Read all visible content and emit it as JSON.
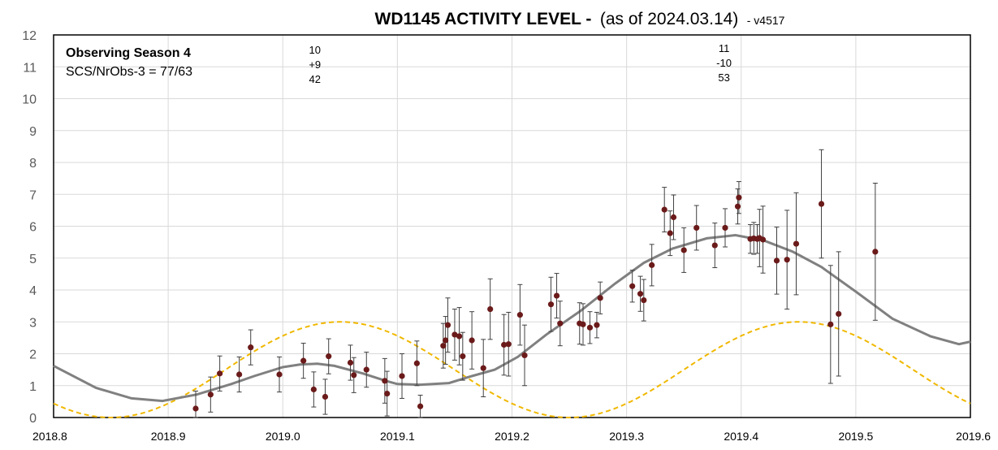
{
  "chart_data": {
    "type": "scatter",
    "title_bold": "WD1145 ACTIVITY LEVEL -",
    "title_normal": "(as of 2024.03.14)",
    "title_suffix": "- v4517",
    "xlim": [
      2018.8,
      2019.6
    ],
    "ylim": [
      0,
      12
    ],
    "x_ticks": [
      "2018.8",
      "2018.9",
      "2019.0",
      "2019.1",
      "2019.2",
      "2019.3",
      "2019.4",
      "2019.5",
      "2019.6"
    ],
    "y_ticks": [
      "0",
      "1",
      "2",
      "3",
      "4",
      "5",
      "6",
      "7",
      "8",
      "9",
      "10",
      "11",
      "12"
    ],
    "grid": true,
    "annotations": {
      "season": "Observing Season 4",
      "ratio": "SCS/NrObs-3 = 77/63",
      "top_left": {
        "x": 2019.028,
        "lines": [
          "10",
          "+9",
          "42"
        ]
      },
      "top_right": {
        "x": 2019.385,
        "lines": [
          "11",
          "-10",
          "53"
        ]
      }
    },
    "colors": {
      "points": "#6b1a1a",
      "smooth": "#808080",
      "model": "#f0b800",
      "errorbar": "#404040"
    },
    "points": [
      [
        2018.924,
        0.28,
        0.55
      ],
      [
        2018.937,
        0.72,
        0.55
      ],
      [
        2018.945,
        1.38,
        0.55
      ],
      [
        2018.962,
        1.35,
        0.55
      ],
      [
        2018.972,
        2.2,
        0.55
      ],
      [
        2018.997,
        1.35,
        0.55
      ],
      [
        2019.018,
        1.78,
        0.55
      ],
      [
        2019.027,
        0.88,
        0.55
      ],
      [
        2019.037,
        0.65,
        0.55
      ],
      [
        2019.04,
        1.92,
        0.55
      ],
      [
        2019.059,
        1.72,
        0.55
      ],
      [
        2019.062,
        1.33,
        0.55
      ],
      [
        2019.073,
        1.5,
        0.55
      ],
      [
        2019.089,
        1.15,
        0.7
      ],
      [
        2019.091,
        0.75,
        0.7
      ],
      [
        2019.104,
        1.3,
        0.7
      ],
      [
        2019.117,
        1.7,
        0.7
      ],
      [
        2019.12,
        0.35,
        0.35
      ],
      [
        2019.14,
        2.25,
        0.7
      ],
      [
        2019.142,
        2.42,
        0.75
      ],
      [
        2019.144,
        2.9,
        0.85
      ],
      [
        2019.15,
        2.6,
        0.8
      ],
      [
        2019.154,
        2.55,
        0.9
      ],
      [
        2019.157,
        1.92,
        0.75
      ],
      [
        2019.165,
        2.42,
        0.9
      ],
      [
        2019.175,
        1.55,
        0.9
      ],
      [
        2019.181,
        3.4,
        0.95
      ],
      [
        2019.193,
        2.28,
        0.95
      ],
      [
        2019.197,
        2.3,
        1.0
      ],
      [
        2019.207,
        3.22,
        0.95
      ],
      [
        2019.211,
        1.95,
        0.95
      ],
      [
        2019.234,
        3.55,
        0.85
      ],
      [
        2019.239,
        3.82,
        0.7
      ],
      [
        2019.242,
        2.95,
        0.7
      ],
      [
        2019.259,
        2.95,
        0.65
      ],
      [
        2019.262,
        2.92,
        0.65
      ],
      [
        2019.268,
        2.82,
        0.5
      ],
      [
        2019.274,
        2.9,
        0.4
      ],
      [
        2019.277,
        3.75,
        0.5
      ],
      [
        2019.305,
        4.12,
        0.5
      ],
      [
        2019.312,
        3.88,
        0.55
      ],
      [
        2019.315,
        3.68,
        0.65
      ],
      [
        2019.322,
        4.78,
        0.65
      ],
      [
        2019.333,
        6.52,
        0.7
      ],
      [
        2019.338,
        5.78,
        0.7
      ],
      [
        2019.341,
        6.28,
        0.7
      ],
      [
        2019.35,
        5.25,
        0.7
      ],
      [
        2019.361,
        5.95,
        0.7
      ],
      [
        2019.377,
        5.4,
        0.7
      ],
      [
        2019.386,
        5.95,
        0.6
      ],
      [
        2019.397,
        6.62,
        0.55
      ],
      [
        2019.398,
        6.9,
        0.5
      ],
      [
        2019.408,
        5.6,
        0.45
      ],
      [
        2019.411,
        5.62,
        0.5
      ],
      [
        2019.414,
        5.6,
        0.45
      ],
      [
        2019.416,
        5.63,
        0.9
      ],
      [
        2019.419,
        5.58,
        1.05
      ],
      [
        2019.431,
        4.92,
        1.05
      ],
      [
        2019.44,
        4.95,
        1.55
      ],
      [
        2019.448,
        5.45,
        1.6
      ],
      [
        2019.47,
        6.7,
        1.7
      ],
      [
        2019.478,
        2.92,
        1.85
      ],
      [
        2019.485,
        3.25,
        1.95
      ],
      [
        2019.517,
        5.2,
        2.15
      ]
    ],
    "smooth_curve": [
      [
        2018.8,
        1.62
      ],
      [
        2018.837,
        0.93
      ],
      [
        2018.868,
        0.6
      ],
      [
        2018.895,
        0.52
      ],
      [
        2018.925,
        0.72
      ],
      [
        2018.955,
        1.05
      ],
      [
        2018.975,
        1.3
      ],
      [
        2019.0,
        1.58
      ],
      [
        2019.015,
        1.66
      ],
      [
        2019.03,
        1.69
      ],
      [
        2019.045,
        1.62
      ],
      [
        2019.07,
        1.38
      ],
      [
        2019.09,
        1.15
      ],
      [
        2019.1,
        1.05
      ],
      [
        2019.12,
        1.03
      ],
      [
        2019.145,
        1.08
      ],
      [
        2019.165,
        1.3
      ],
      [
        2019.185,
        1.5
      ],
      [
        2019.205,
        1.9
      ],
      [
        2019.23,
        2.6
      ],
      [
        2019.26,
        3.35
      ],
      [
        2019.29,
        4.2
      ],
      [
        2019.315,
        4.85
      ],
      [
        2019.34,
        5.3
      ],
      [
        2019.37,
        5.62
      ],
      [
        2019.395,
        5.72
      ],
      [
        2019.42,
        5.55
      ],
      [
        2019.445,
        5.2
      ],
      [
        2019.47,
        4.72
      ],
      [
        2019.5,
        3.95
      ],
      [
        2019.532,
        3.1
      ],
      [
        2019.565,
        2.55
      ],
      [
        2019.59,
        2.3
      ],
      [
        2019.6,
        2.38
      ]
    ],
    "model_curve": {
      "period": 0.4,
      "min_x": 2018.85,
      "amplitude": 1.5,
      "offset": 1.5
    }
  }
}
